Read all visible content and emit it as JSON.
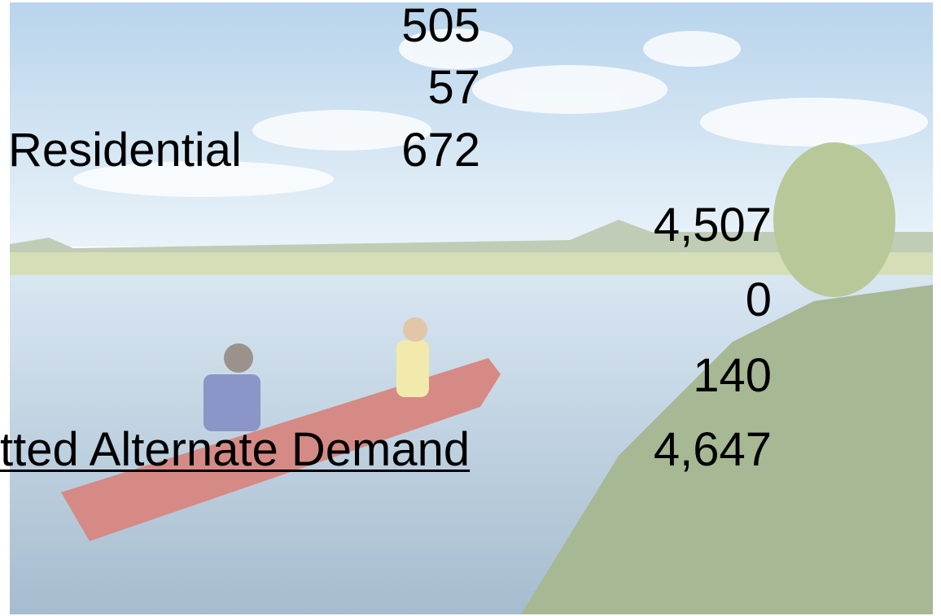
{
  "rows": [
    {
      "value": "505"
    },
    {
      "value": "57"
    },
    {
      "label": "Residential",
      "value": "672"
    },
    {
      "value": "4,507"
    },
    {
      "value": "0"
    },
    {
      "value": "140"
    },
    {
      "label": "tted Alternate Demand",
      "value": "4,647"
    }
  ]
}
